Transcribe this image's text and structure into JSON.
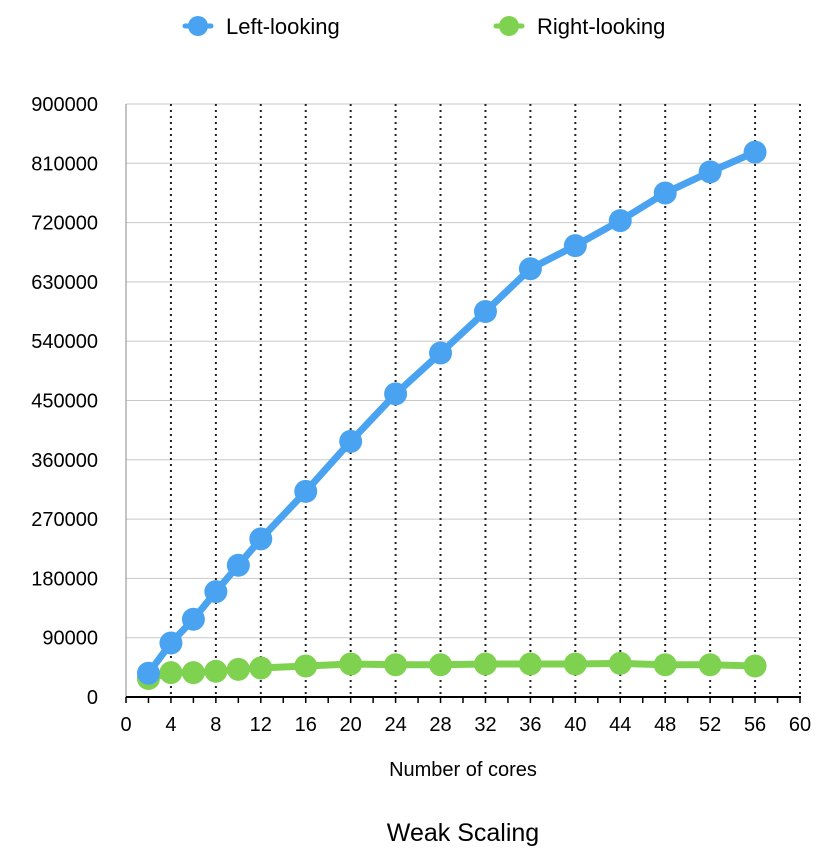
{
  "chart_data": {
    "type": "line",
    "title": "Weak Scaling",
    "xlabel": "Number of cores",
    "ylabel": "",
    "xlim": [
      0,
      60
    ],
    "ylim": [
      0,
      900000
    ],
    "x_ticks": [
      "0",
      "4",
      "8",
      "12",
      "16",
      "20",
      "24",
      "28",
      "32",
      "36",
      "40",
      "44",
      "48",
      "52",
      "56",
      "60"
    ],
    "y_ticks": [
      "0",
      "90000",
      "180000",
      "270000",
      "360000",
      "450000",
      "540000",
      "630000",
      "720000",
      "810000",
      "900000"
    ],
    "grid": {
      "x": "dotted",
      "y": "solid"
    },
    "legend_position": "top",
    "series": [
      {
        "name": "Left-looking",
        "color": "#4aa3f0",
        "x": [
          2,
          4,
          6,
          8,
          10,
          12,
          16,
          20,
          24,
          28,
          32,
          36,
          40,
          44,
          48,
          52,
          56
        ],
        "values": [
          36000,
          82000,
          118000,
          160000,
          200000,
          240000,
          312000,
          388000,
          460000,
          522000,
          585000,
          650000,
          685000,
          723000,
          765000,
          797000,
          827000
        ]
      },
      {
        "name": "Right-looking",
        "color": "#7fd24f",
        "x": [
          2,
          4,
          6,
          8,
          10,
          12,
          16,
          20,
          24,
          28,
          32,
          36,
          40,
          44,
          48,
          52,
          56
        ],
        "values": [
          28000,
          37000,
          37000,
          39000,
          42000,
          44000,
          47000,
          50000,
          49000,
          49000,
          50000,
          50000,
          50000,
          51000,
          49000,
          49000,
          47000
        ]
      }
    ]
  }
}
